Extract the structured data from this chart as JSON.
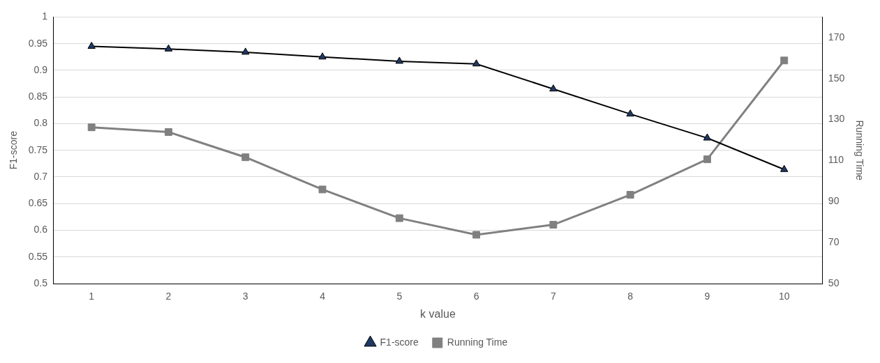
{
  "chart_data": {
    "type": "line",
    "xlabel": "k value",
    "ylabel": "F1-score",
    "y2label": "Running Time",
    "categories": [
      "1",
      "2",
      "3",
      "4",
      "5",
      "6",
      "7",
      "8",
      "9",
      "10"
    ],
    "series": [
      {
        "name": "F1-score",
        "color": "#000000",
        "marker": "triangle",
        "values": [
          0.945,
          0.94,
          0.934,
          0.925,
          0.917,
          0.912,
          0.865,
          0.818,
          0.773,
          0.714
        ]
      },
      {
        "name": "Running Time",
        "color": "#808080",
        "marker": "square",
        "axis": "y2",
        "values": [
          126.2,
          123.9,
          111.6,
          95.9,
          81.9,
          73.8,
          78.7,
          93.3,
          110.6,
          158.8
        ]
      }
    ],
    "ylim": [
      0.5,
      1
    ],
    "yticks": [
      0.5,
      0.55,
      0.6,
      0.65,
      0.7,
      0.75,
      0.8,
      0.85,
      0.9,
      0.95,
      1
    ],
    "y2lim": [
      50,
      180
    ],
    "y2ticks": [
      50,
      70,
      90,
      110,
      130,
      150,
      170
    ],
    "grid": "y",
    "legend": "bottom"
  }
}
